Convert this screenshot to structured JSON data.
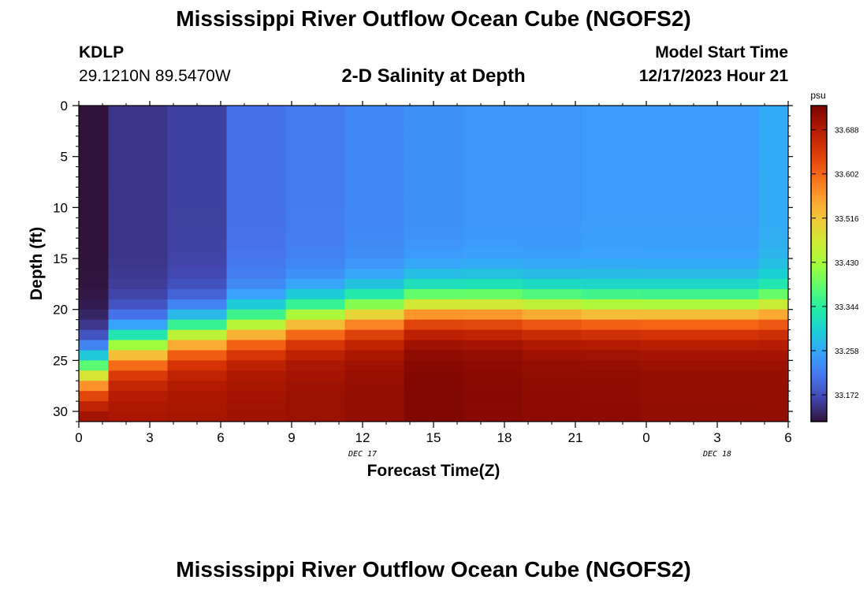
{
  "header": {
    "title": "Mississippi River Outflow Ocean Cube (NGOFS2)",
    "station_id": "KDLP",
    "station_coords": "29.1210N  89.5470W",
    "subtitle": "2-D Salinity at Depth",
    "model_start_label": "Model Start Time",
    "model_start_value": "12/17/2023 Hour 21"
  },
  "footer": {
    "title": "Mississippi River Outflow Ocean Cube (NGOFS2)"
  },
  "colors": {
    "background": "#ffffff",
    "text": "#000000",
    "colormap": [
      "#30123b",
      "#4145ab",
      "#4675ed",
      "#39a2fc",
      "#1bcfd4",
      "#24eca6",
      "#61fc6c",
      "#a4fc3b",
      "#d1e834",
      "#f3c63a",
      "#fe9b2d",
      "#f36315",
      "#d93806",
      "#b11901",
      "#7a0402"
    ]
  },
  "chart_data": {
    "type": "heatmap",
    "title": "2-D Salinity at Depth",
    "xlabel": "Forecast Time(Z)",
    "ylabel": "Depth (ft)",
    "colorbar_label": "psu",
    "x_tick_labels": [
      "0",
      "3",
      "6",
      "9",
      "12",
      "15",
      "18",
      "21",
      "0",
      "3",
      "6"
    ],
    "x_tick_hours": [
      0,
      3,
      6,
      9,
      12,
      15,
      18,
      21,
      24,
      27,
      30
    ],
    "x_date_labels": [
      {
        "text": "DEC 17",
        "hour": 12
      },
      {
        "text": "DEC 18",
        "hour": 27
      }
    ],
    "y_ticks": [
      0,
      5,
      10,
      15,
      20,
      25,
      30
    ],
    "y_range": [
      0,
      31
    ],
    "x_range": [
      0,
      30
    ],
    "column_edges_hours": [
      0,
      1.25,
      3.75,
      6.25,
      8.75,
      11.25,
      13.75,
      16.25,
      18.75,
      21.25,
      23.75,
      26.25,
      28.75,
      30
    ],
    "row_count": 31,
    "colorbar_ticks": [
      33.172,
      33.258,
      33.344,
      33.43,
      33.516,
      33.602,
      33.688
    ],
    "colorbar_range": [
      33.12,
      33.735
    ],
    "salinity_column_params": [
      {
        "surface": 33.12,
        "deep": 33.735,
        "transition_depth": 26.0,
        "width": 3.4
      },
      {
        "surface": 33.15,
        "deep": 33.7,
        "transition_depth": 23.5,
        "width": 3.0
      },
      {
        "surface": 33.16,
        "deep": 33.7,
        "transition_depth": 22.3,
        "width": 3.0
      },
      {
        "surface": 33.205,
        "deep": 33.705,
        "transition_depth": 21.6,
        "width": 3.0
      },
      {
        "surface": 33.215,
        "deep": 33.71,
        "transition_depth": 20.8,
        "width": 3.0
      },
      {
        "surface": 33.225,
        "deep": 33.715,
        "transition_depth": 20.2,
        "width": 3.0
      },
      {
        "surface": 33.235,
        "deep": 33.73,
        "transition_depth": 19.6,
        "width": 2.9
      },
      {
        "surface": 33.24,
        "deep": 33.725,
        "transition_depth": 19.6,
        "width": 2.9
      },
      {
        "surface": 33.24,
        "deep": 33.72,
        "transition_depth": 19.8,
        "width": 2.9
      },
      {
        "surface": 33.245,
        "deep": 33.72,
        "transition_depth": 20.0,
        "width": 2.9
      },
      {
        "surface": 33.245,
        "deep": 33.715,
        "transition_depth": 20.0,
        "width": 2.9
      },
      {
        "surface": 33.245,
        "deep": 33.715,
        "transition_depth": 20.0,
        "width": 2.9
      },
      {
        "surface": 33.26,
        "deep": 33.715,
        "transition_depth": 19.8,
        "width": 3.0
      }
    ]
  }
}
